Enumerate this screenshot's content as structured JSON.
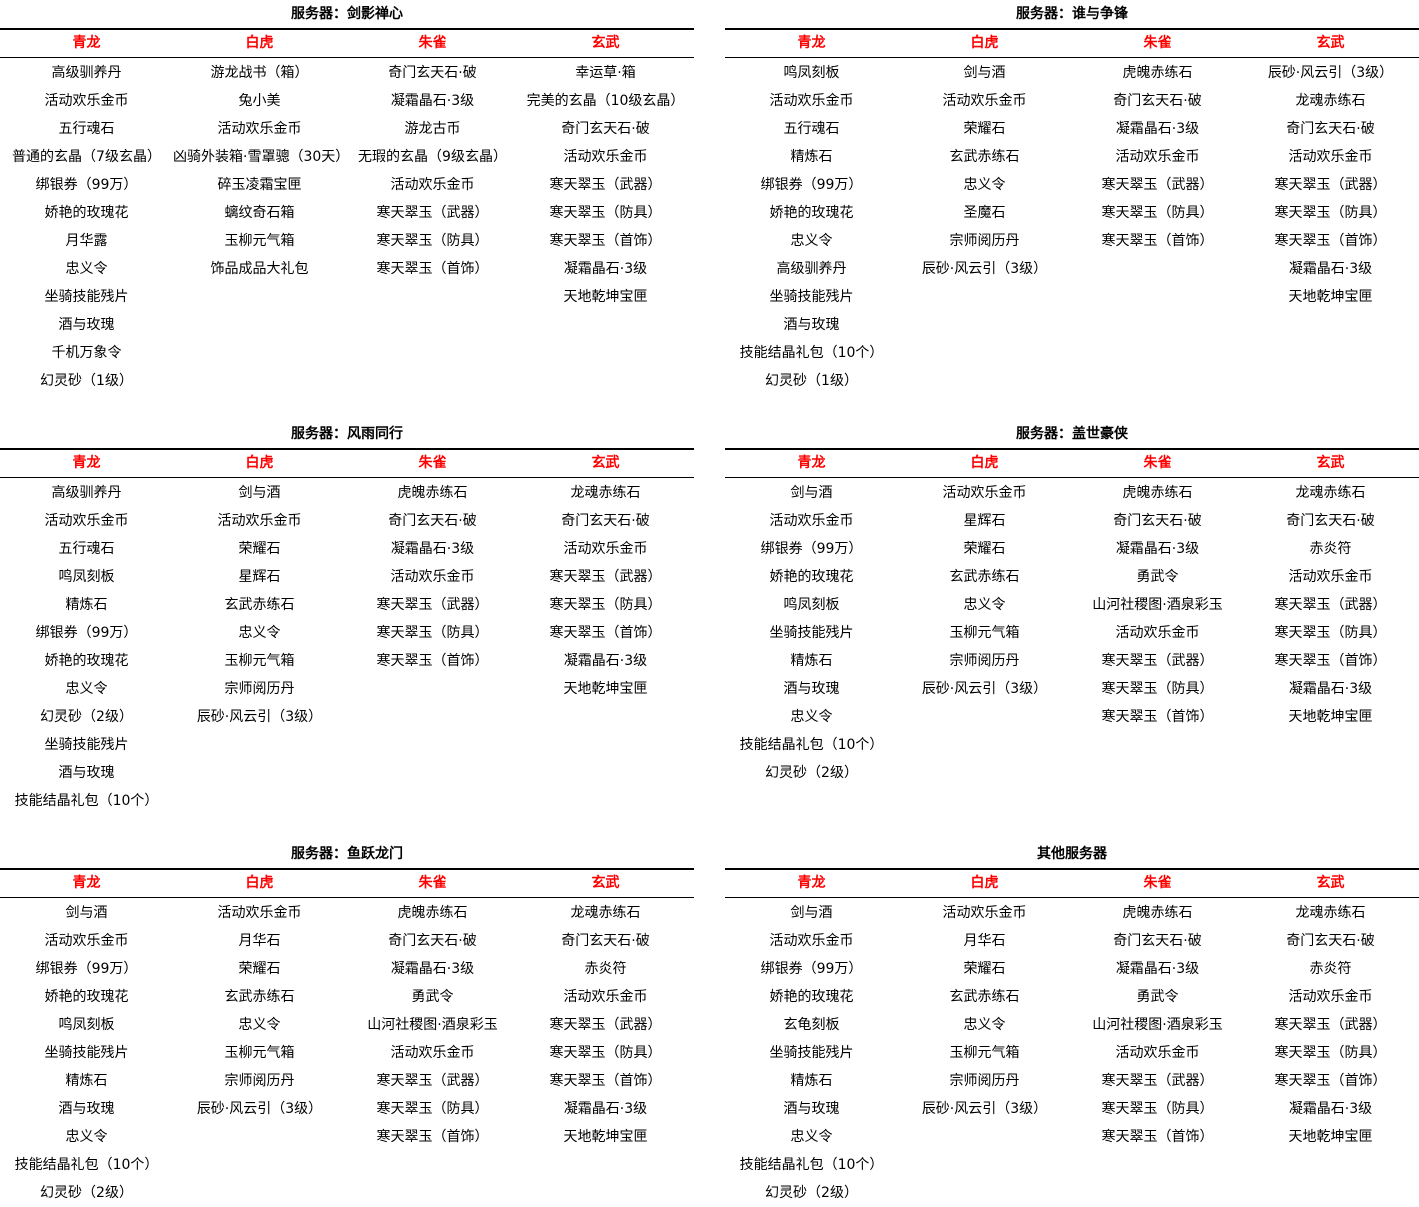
{
  "headers": [
    "青龙",
    "白虎",
    "朱雀",
    "玄武"
  ],
  "panels": [
    {
      "title": "服务器：剑影禅心",
      "columns": [
        [
          "高级驯养丹",
          "活动欢乐金币",
          "五行魂石",
          "普通的玄晶（7级玄晶）",
          "绑银券（99万）",
          "娇艳的玫瑰花",
          "月华露",
          "忠义令",
          "坐骑技能残片",
          "酒与玫瑰",
          "千机万象令",
          "幻灵砂（1级）"
        ],
        [
          "游龙战书（箱）",
          "兔小美",
          "活动欢乐金币",
          "凶骑外装箱·雪罩骢（30天）",
          "碎玉凌霜宝匣",
          "螭纹奇石箱",
          "玉柳元气箱",
          "饰品成品大礼包"
        ],
        [
          "奇门玄天石·破",
          "凝霜晶石·3级",
          "游龙古币",
          "无瑕的玄晶（9级玄晶）",
          "活动欢乐金币",
          "寒天翠玉（武器）",
          "寒天翠玉（防具）",
          "寒天翠玉（首饰）"
        ],
        [
          "幸运草·箱",
          "完美的玄晶（10级玄晶）",
          "奇门玄天石·破",
          "活动欢乐金币",
          "寒天翠玉（武器）",
          "寒天翠玉（防具）",
          "寒天翠玉（首饰）",
          "凝霜晶石·3级",
          "天地乾坤宝匣"
        ]
      ]
    },
    {
      "title": "服务器：谁与争锋",
      "columns": [
        [
          "鸣凤刻板",
          "活动欢乐金币",
          "五行魂石",
          "精炼石",
          "绑银券（99万）",
          "娇艳的玫瑰花",
          "忠义令",
          "高级驯养丹",
          "坐骑技能残片",
          "酒与玫瑰",
          "技能结晶礼包（10个）",
          "幻灵砂（1级）"
        ],
        [
          "剑与酒",
          "活动欢乐金币",
          "荣耀石",
          "玄武赤练石",
          "忠义令",
          "圣魔石",
          "宗师阅历丹",
          "辰砂·风云引（3级）"
        ],
        [
          "虎魄赤练石",
          "奇门玄天石·破",
          "凝霜晶石·3级",
          "活动欢乐金币",
          "寒天翠玉（武器）",
          "寒天翠玉（防具）",
          "寒天翠玉（首饰）"
        ],
        [
          "辰砂·风云引（3级）",
          "龙魂赤练石",
          "奇门玄天石·破",
          "活动欢乐金币",
          "寒天翠玉（武器）",
          "寒天翠玉（防具）",
          "寒天翠玉（首饰）",
          "凝霜晶石·3级",
          "天地乾坤宝匣"
        ]
      ]
    },
    {
      "title": "服务器：风雨同行",
      "columns": [
        [
          "高级驯养丹",
          "活动欢乐金币",
          "五行魂石",
          "鸣凤刻板",
          "精炼石",
          "绑银券（99万）",
          "娇艳的玫瑰花",
          "忠义令",
          "幻灵砂（2级）",
          "坐骑技能残片",
          "酒与玫瑰",
          "技能结晶礼包（10个）"
        ],
        [
          "剑与酒",
          "活动欢乐金币",
          "荣耀石",
          "星辉石",
          "玄武赤练石",
          "忠义令",
          "玉柳元气箱",
          "宗师阅历丹",
          "辰砂·风云引（3级）"
        ],
        [
          "虎魄赤练石",
          "奇门玄天石·破",
          "凝霜晶石·3级",
          "活动欢乐金币",
          "寒天翠玉（武器）",
          "寒天翠玉（防具）",
          "寒天翠玉（首饰）"
        ],
        [
          "龙魂赤练石",
          "奇门玄天石·破",
          "活动欢乐金币",
          "寒天翠玉（武器）",
          "寒天翠玉（防具）",
          "寒天翠玉（首饰）",
          "凝霜晶石·3级",
          "天地乾坤宝匣"
        ]
      ]
    },
    {
      "title": "服务器：盖世豪侠",
      "columns": [
        [
          "剑与酒",
          "活动欢乐金币",
          "绑银券（99万）",
          "娇艳的玫瑰花",
          "鸣凤刻板",
          "坐骑技能残片",
          "精炼石",
          "酒与玫瑰",
          "忠义令",
          "技能结晶礼包（10个）",
          "幻灵砂（2级）"
        ],
        [
          "活动欢乐金币",
          "星辉石",
          "荣耀石",
          "玄武赤练石",
          "忠义令",
          "玉柳元气箱",
          "宗师阅历丹",
          "辰砂·风云引（3级）"
        ],
        [
          "虎魄赤练石",
          "奇门玄天石·破",
          "凝霜晶石·3级",
          "勇武令",
          "山河社稷图·酒泉彩玉",
          "活动欢乐金币",
          "寒天翠玉（武器）",
          "寒天翠玉（防具）",
          "寒天翠玉（首饰）"
        ],
        [
          "龙魂赤练石",
          "奇门玄天石·破",
          "赤炎符",
          "活动欢乐金币",
          "寒天翠玉（武器）",
          "寒天翠玉（防具）",
          "寒天翠玉（首饰）",
          "凝霜晶石·3级",
          "天地乾坤宝匣"
        ]
      ]
    },
    {
      "title": "服务器：鱼跃龙门",
      "columns": [
        [
          "剑与酒",
          "活动欢乐金币",
          "绑银券（99万）",
          "娇艳的玫瑰花",
          "鸣凤刻板",
          "坐骑技能残片",
          "精炼石",
          "酒与玫瑰",
          "忠义令",
          "技能结晶礼包（10个）",
          "幻灵砂（2级）"
        ],
        [
          "活动欢乐金币",
          "月华石",
          "荣耀石",
          "玄武赤练石",
          "忠义令",
          "玉柳元气箱",
          "宗师阅历丹",
          "辰砂·风云引（3级）"
        ],
        [
          "虎魄赤练石",
          "奇门玄天石·破",
          "凝霜晶石·3级",
          "勇武令",
          "山河社稷图·酒泉彩玉",
          "活动欢乐金币",
          "寒天翠玉（武器）",
          "寒天翠玉（防具）",
          "寒天翠玉（首饰）"
        ],
        [
          "龙魂赤练石",
          "奇门玄天石·破",
          "赤炎符",
          "活动欢乐金币",
          "寒天翠玉（武器）",
          "寒天翠玉（防具）",
          "寒天翠玉（首饰）",
          "凝霜晶石·3级",
          "天地乾坤宝匣"
        ]
      ]
    },
    {
      "title": "其他服务器",
      "columns": [
        [
          "剑与酒",
          "活动欢乐金币",
          "绑银券（99万）",
          "娇艳的玫瑰花",
          "玄龟刻板",
          "坐骑技能残片",
          "精炼石",
          "酒与玫瑰",
          "忠义令",
          "技能结晶礼包（10个）",
          "幻灵砂（2级）"
        ],
        [
          "活动欢乐金币",
          "月华石",
          "荣耀石",
          "玄武赤练石",
          "忠义令",
          "玉柳元气箱",
          "宗师阅历丹",
          "辰砂·风云引（3级）"
        ],
        [
          "虎魄赤练石",
          "奇门玄天石·破",
          "凝霜晶石·3级",
          "勇武令",
          "山河社稷图·酒泉彩玉",
          "活动欢乐金币",
          "寒天翠玉（武器）",
          "寒天翠玉（防具）",
          "寒天翠玉（首饰）"
        ],
        [
          "龙魂赤练石",
          "奇门玄天石·破",
          "赤炎符",
          "活动欢乐金币",
          "寒天翠玉（武器）",
          "寒天翠玉（防具）",
          "寒天翠玉（首饰）",
          "凝霜晶石·3级",
          "天地乾坤宝匣"
        ]
      ]
    }
  ]
}
